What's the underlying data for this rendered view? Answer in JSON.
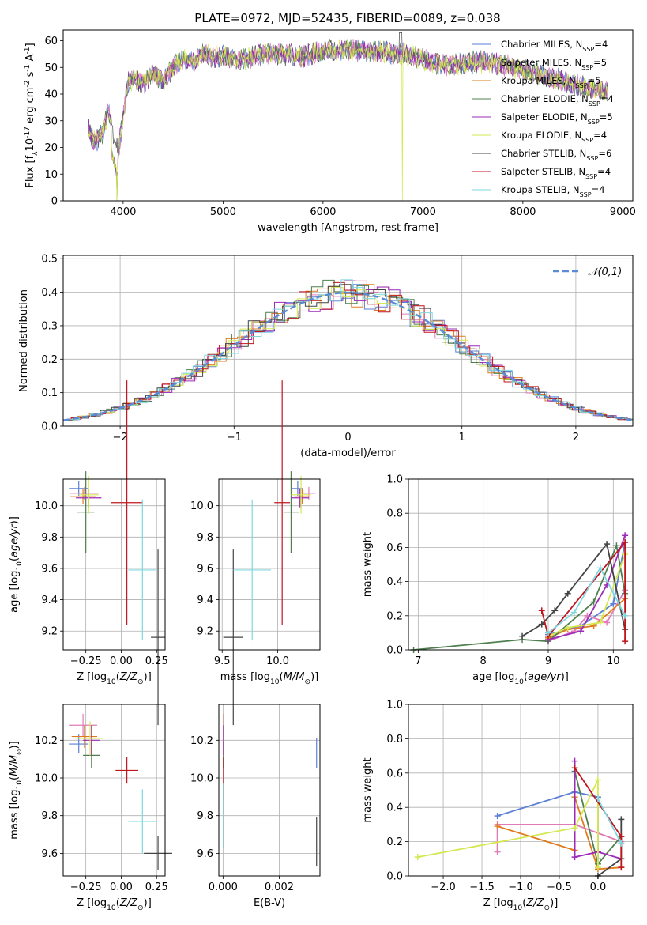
{
  "figure": {
    "title": "PLATE=0972, MJD=52435, FIBERID=0089, z=0.038"
  },
  "models": [
    {
      "name": "Chabrier MILES, N$_{SSP}$=4",
      "color": "#5a7fd4"
    },
    {
      "name": "Salpeter MILES, N$_{SSP}$=5",
      "color": "#e07bb8"
    },
    {
      "name": "Kroupa MILES, N$_{SSP}$=5",
      "color": "#e07b1d"
    },
    {
      "name": "Chabrier ELODIE, N$_{SSP}$=4",
      "color": "#4f7f4f"
    },
    {
      "name": "Salpeter ELODIE, N$_{SSP}$=5",
      "color": "#9b2bb8"
    },
    {
      "name": "Kroupa ELODIE, N$_{SSP}$=4",
      "color": "#d4e84f"
    },
    {
      "name": "Chabrier STELIB, N$_{SSP}$=6",
      "color": "#444444"
    },
    {
      "name": "Salpeter STELIB, N$_{SSP}$=4",
      "color": "#c0141e"
    },
    {
      "name": "Kroupa STELIB, N$_{SSP}$=4",
      "color": "#7fd8e0"
    }
  ],
  "chart_data": [
    {
      "id": "spectrum",
      "type": "line",
      "xlabel": "wavelength [Angstrom, rest frame]",
      "ylabel": "Flux [f$_\\lambda$10$^{-17}$ erg cm$^{-2}$ s$^{-1}$ A$^{-1}$]",
      "xlim": [
        3400,
        9100
      ],
      "ylim": [
        0,
        64
      ],
      "xticks": [
        4000,
        5000,
        6000,
        7000,
        8000,
        9000
      ],
      "yticks": [
        0,
        10,
        20,
        30,
        40,
        50,
        60
      ],
      "envelope": {
        "x": [
          3650,
          3700,
          3800,
          3850,
          3900,
          3950,
          4000,
          4050,
          4100,
          4200,
          4300,
          4400,
          4500,
          4600,
          4700,
          4800,
          4900,
          5000,
          5200,
          5400,
          5600,
          5800,
          6000,
          6200,
          6400,
          6600,
          6800,
          7000,
          7200,
          7400,
          7500,
          7600,
          7800,
          8000,
          8200,
          8400,
          8600,
          8800
        ],
        "y": [
          28,
          22,
          25,
          34,
          26,
          18,
          32,
          44,
          46,
          44,
          48,
          45,
          50,
          53,
          52,
          55,
          54,
          54,
          53,
          55,
          55,
          54,
          56,
          57,
          56,
          56,
          55,
          53,
          51,
          51,
          52,
          52,
          51,
          49,
          47,
          45,
          43,
          41
        ]
      }
    },
    {
      "id": "residuals",
      "type": "line",
      "xlabel": "(data-model)/error",
      "ylabel": "Normed distribution",
      "xlim": [
        -2.5,
        2.5
      ],
      "ylim": [
        0,
        0.51
      ],
      "xticks": [
        -2,
        -1,
        0,
        1,
        2
      ],
      "yticks": [
        0.0,
        0.1,
        0.2,
        0.3,
        0.4,
        0.5
      ],
      "legend": "$\\mathcal{N}(0,1)$",
      "legend_position": "top-right"
    },
    {
      "id": "age_vs_Z",
      "type": "scatter",
      "xlabel": "Z [log$_{10}$($Z/Z_\\odot$)]",
      "ylabel": "age  [log$_{10}$($age/yr$)]",
      "xlim": [
        -0.41,
        0.31
      ],
      "ylim": [
        9.08,
        10.17
      ],
      "xticks": [
        -0.25,
        0.0,
        0.25
      ],
      "yticks": [
        9.2,
        9.4,
        9.6,
        9.8,
        10.0
      ],
      "points": [
        {
          "x": -0.3,
          "y": 10.11,
          "xerr": 0.07,
          "yerr": 0.05
        },
        {
          "x": -0.26,
          "y": 10.08,
          "xerr": 0.1,
          "yerr": 0.04
        },
        {
          "x": -0.27,
          "y": 10.06,
          "xerr": 0.09,
          "yerr": 0.05
        },
        {
          "x": -0.25,
          "y": 9.96,
          "xerr": 0.06,
          "yerr": 0.26
        },
        {
          "x": -0.23,
          "y": 10.05,
          "xerr": 0.09,
          "yerr": 0.06
        },
        {
          "x": -0.23,
          "y": 10.07,
          "xerr": 0.07,
          "yerr": 0.12
        },
        {
          "x": 0.26,
          "y": 9.16,
          "xerr": 0.05,
          "yerr": 0.56
        },
        {
          "x": 0.04,
          "y": 10.02,
          "xerr": 0.11,
          "yerr": 0.78
        },
        {
          "x": 0.15,
          "y": 9.59,
          "xerr": 0.1,
          "yerr": 0.45
        }
      ]
    },
    {
      "id": "age_vs_mass",
      "type": "scatter",
      "xlabel": "mass [log$_{10}$($M/M_\\odot$)]",
      "ylabel": "",
      "xlim": [
        9.47,
        10.38
      ],
      "ylim": [
        9.08,
        10.17
      ],
      "xticks": [
        9.5,
        10.0
      ],
      "yticks": [
        9.2,
        9.4,
        9.6,
        9.8,
        10.0
      ],
      "points": [
        {
          "x": 10.18,
          "y": 10.11,
          "xerr": 0.05,
          "yerr": 0.05
        },
        {
          "x": 10.28,
          "y": 10.08,
          "xerr": 0.06,
          "yerr": 0.04
        },
        {
          "x": 10.22,
          "y": 10.06,
          "xerr": 0.06,
          "yerr": 0.05
        },
        {
          "x": 10.12,
          "y": 9.96,
          "xerr": 0.07,
          "yerr": 0.26
        },
        {
          "x": 10.2,
          "y": 10.05,
          "xerr": 0.08,
          "yerr": 0.06
        },
        {
          "x": 10.21,
          "y": 10.07,
          "xerr": 0.09,
          "yerr": 0.12
        },
        {
          "x": 9.6,
          "y": 9.16,
          "xerr": 0.09,
          "yerr": 0.56
        },
        {
          "x": 10.04,
          "y": 10.02,
          "xerr": 0.07,
          "yerr": 0.78
        },
        {
          "x": 9.77,
          "y": 9.59,
          "xerr": 0.17,
          "yerr": 0.45
        }
      ]
    },
    {
      "id": "mass_weight_vs_age",
      "type": "line",
      "xlabel": "age  [log$_{10}$($age/yr$)]",
      "ylabel": "mass weight",
      "xlim": [
        6.85,
        10.3
      ],
      "ylim": [
        0,
        1.0
      ],
      "xticks": [
        7,
        8,
        9,
        10
      ],
      "yticks": [
        0.0,
        0.2,
        0.4,
        0.6,
        0.8,
        1.0
      ],
      "series": [
        {
          "x": [
            9.0,
            9.5,
            10.0,
            10.18
          ],
          "y": [
            0.09,
            0.14,
            0.27,
            0.63
          ]
        },
        {
          "x": [
            9.0,
            9.4,
            9.6,
            9.9,
            10.18
          ],
          "y": [
            0.05,
            0.11,
            0.2,
            0.16,
            0.35
          ]
        },
        {
          "x": [
            9.0,
            9.3,
            9.7,
            10.18
          ],
          "y": [
            0.07,
            0.12,
            0.14,
            0.3
          ]
        },
        {
          "x": [
            6.93,
            8.6,
            9.0,
            9.7,
            10.05,
            10.18
          ],
          "y": [
            0.0,
            0.06,
            0.05,
            0.28,
            0.61,
            0.33
          ]
        },
        {
          "x": [
            9.0,
            9.5,
            9.9,
            10.18
          ],
          "y": [
            0.06,
            0.11,
            0.38,
            0.67
          ]
        },
        {
          "x": [
            9.0,
            9.3,
            9.8,
            10.18
          ],
          "y": [
            0.08,
            0.13,
            0.16,
            0.56
          ]
        },
        {
          "x": [
            8.6,
            8.9,
            9.1,
            9.3,
            9.9,
            10.18
          ],
          "y": [
            0.08,
            0.15,
            0.23,
            0.33,
            0.62,
            0.12
          ]
        },
        {
          "x": [
            8.9,
            9.0,
            10.18,
            10.18
          ],
          "y": [
            0.23,
            0.08,
            0.63,
            0.05
          ]
        },
        {
          "x": [
            9.0,
            9.4,
            9.8,
            10.18
          ],
          "y": [
            0.1,
            0.22,
            0.48,
            0.2
          ]
        }
      ]
    },
    {
      "id": "mass_vs_Z",
      "type": "scatter",
      "xlabel": "Z [log$_{10}$($Z/Z_\\odot$)]",
      "ylabel": "mass [log$_{10}$($M/M_\\odot$)]",
      "xlim": [
        -0.41,
        0.31
      ],
      "ylim": [
        9.48,
        10.39
      ],
      "xticks": [
        -0.25,
        0.0,
        0.25
      ],
      "yticks": [
        9.6,
        9.8,
        10.0,
        10.2
      ],
      "points": [
        {
          "x": -0.3,
          "y": 10.18,
          "xerr": 0.07,
          "yerr": 0.05
        },
        {
          "x": -0.27,
          "y": 10.28,
          "xerr": 0.1,
          "yerr": 0.06
        },
        {
          "x": -0.26,
          "y": 10.22,
          "xerr": 0.09,
          "yerr": 0.06
        },
        {
          "x": -0.21,
          "y": 10.12,
          "xerr": 0.06,
          "yerr": 0.07
        },
        {
          "x": -0.21,
          "y": 10.2,
          "xerr": 0.06,
          "yerr": 0.08
        },
        {
          "x": -0.22,
          "y": 10.21,
          "xerr": 0.09,
          "yerr": 0.09
        },
        {
          "x": 0.26,
          "y": 9.6,
          "xerr": 0.1,
          "yerr": 0.09
        },
        {
          "x": 0.04,
          "y": 10.04,
          "xerr": 0.08,
          "yerr": 0.07
        },
        {
          "x": 0.15,
          "y": 9.77,
          "xerr": 0.1,
          "yerr": 0.17
        }
      ]
    },
    {
      "id": "mass_vs_EBV",
      "type": "scatter",
      "xlabel": "E(B-V)",
      "ylabel": "",
      "xlim": [
        -0.00015,
        0.00345
      ],
      "ylim": [
        9.48,
        10.39
      ],
      "xticks": [
        0.0,
        0.002
      ],
      "yticks": [
        9.6,
        9.8,
        10.0,
        10.2
      ],
      "points": [
        {
          "x": 0.00333,
          "y": 10.13,
          "xerr": 0,
          "yerr": 0.08
        },
        {
          "x": 2e-05,
          "y": 10.28,
          "xerr": 0,
          "yerr": 0.06
        },
        {
          "x": 2e-05,
          "y": 10.22,
          "xerr": 0,
          "yerr": 0.06
        },
        {
          "x": 1e-05,
          "y": 10.12,
          "xerr": 0,
          "yerr": 0.07
        },
        {
          "x": 1e-05,
          "y": 10.2,
          "xerr": 0,
          "yerr": 0.08
        },
        {
          "x": 3e-05,
          "y": 10.21,
          "xerr": 0,
          "yerr": 0.13
        },
        {
          "x": 0.00333,
          "y": 9.66,
          "xerr": 0,
          "yerr": 0.13
        },
        {
          "x": 2e-05,
          "y": 10.0,
          "xerr": 0,
          "yerr": 0.11
        },
        {
          "x": 2e-05,
          "y": 9.8,
          "xerr": 0,
          "yerr": 0.17
        }
      ]
    },
    {
      "id": "mass_weight_vs_Z",
      "type": "line",
      "xlabel": "Z [log$_{10}$($Z/Z_\\odot$)]",
      "ylabel": "mass weight",
      "xlim": [
        -2.45,
        0.45
      ],
      "ylim": [
        0,
        1.0
      ],
      "xticks": [
        -2.0,
        -1.5,
        -1.0,
        -0.5,
        0.0
      ],
      "yticks": [
        0.0,
        0.2,
        0.4,
        0.6,
        0.8,
        1.0
      ],
      "series": [
        {
          "x": [
            -1.3,
            -0.3,
            0.0,
            0.0
          ],
          "y": [
            0.35,
            0.49,
            0.46,
            0.1
          ]
        },
        {
          "x": [
            -1.3,
            -1.3,
            -0.3,
            0.3
          ],
          "y": [
            0.14,
            0.3,
            0.3,
            0.2
          ]
        },
        {
          "x": [
            -1.3,
            -0.3,
            -0.3,
            0.0,
            0.3
          ],
          "y": [
            0.29,
            0.15,
            0.46,
            0.04,
            0.05
          ]
        },
        {
          "x": [
            -0.3,
            0.0,
            0.3
          ],
          "y": [
            0.61,
            0.07,
            0.23
          ]
        },
        {
          "x": [
            -0.3,
            -0.3,
            0.0,
            0.3
          ],
          "y": [
            0.67,
            0.11,
            0.14,
            0.1
          ]
        },
        {
          "x": [
            -2.33,
            -0.3,
            0.0,
            0.0
          ],
          "y": [
            0.11,
            0.28,
            0.56,
            0.05
          ]
        },
        {
          "x": [
            0.0,
            0.3,
            0.3
          ],
          "y": [
            0.0,
            0.1,
            0.33
          ]
        },
        {
          "x": [
            -0.3,
            0.3,
            0.3
          ],
          "y": [
            0.63,
            0.23,
            0.05
          ]
        },
        {
          "x": [
            0.0,
            0.3
          ],
          "y": [
            0.45,
            0.19
          ]
        }
      ]
    }
  ]
}
